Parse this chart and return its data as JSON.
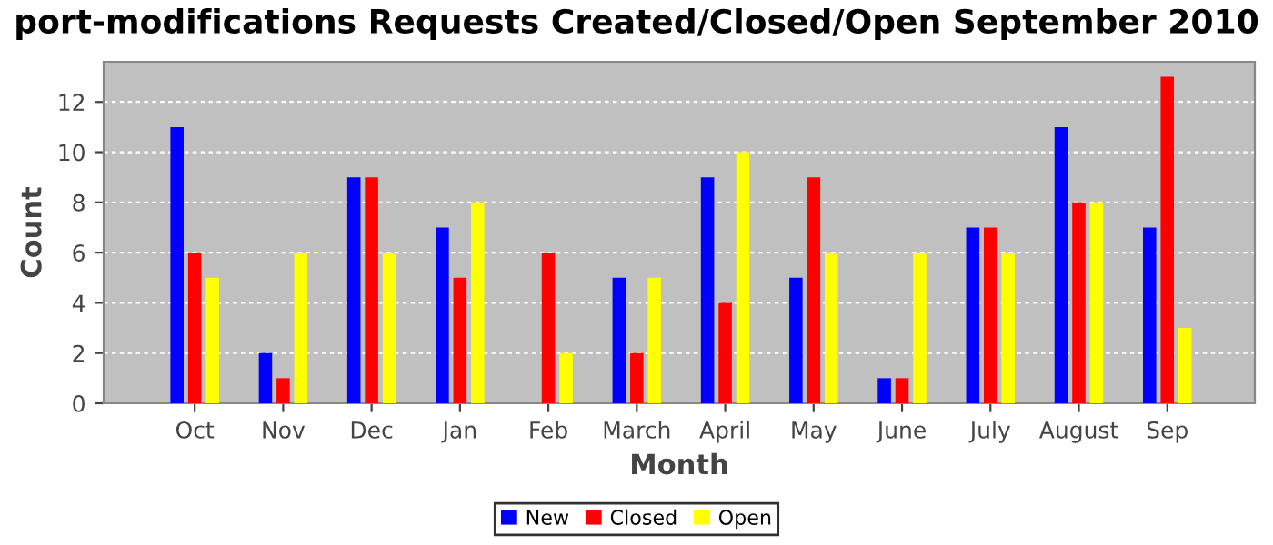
{
  "chart_data": {
    "type": "bar",
    "title": "port-modifications Requests Created/Closed/Open September 2010",
    "xlabel": "Month",
    "ylabel": "Count",
    "categories": [
      "Oct",
      "Nov",
      "Dec",
      "Jan",
      "Feb",
      "March",
      "April",
      "May",
      "June",
      "July",
      "August",
      "Sep"
    ],
    "series": [
      {
        "name": "New",
        "color": "#0000ff",
        "values": [
          11,
          2,
          9,
          7,
          0,
          5,
          9,
          5,
          1,
          7,
          11,
          7
        ]
      },
      {
        "name": "Closed",
        "color": "#ff0000",
        "values": [
          6,
          1,
          9,
          5,
          6,
          2,
          4,
          9,
          1,
          7,
          8,
          13
        ]
      },
      {
        "name": "Open",
        "color": "#ffff00",
        "values": [
          5,
          6,
          6,
          8,
          2,
          5,
          10,
          6,
          6,
          6,
          8,
          3
        ]
      }
    ],
    "ylim": [
      0,
      13.6
    ],
    "yticks": [
      0,
      2,
      4,
      6,
      8,
      10,
      12
    ],
    "grid": "y",
    "legend": "bottom"
  }
}
